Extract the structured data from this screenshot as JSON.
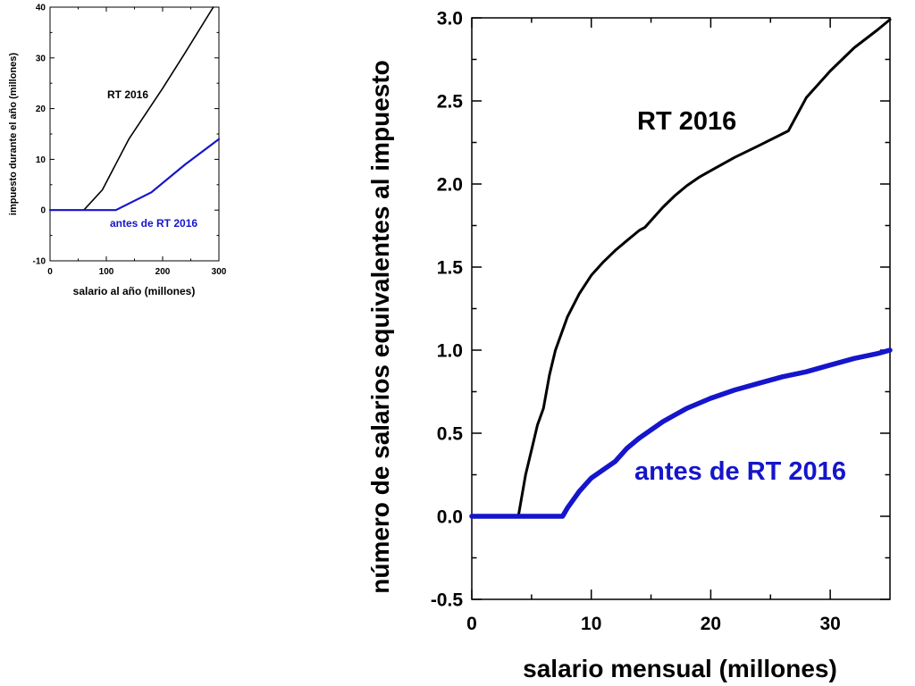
{
  "chart_data": [
    {
      "type": "line",
      "xlabel": "salario al año (millones)",
      "ylabel": "impuesto durante el año (millones)",
      "xlim": [
        0,
        300
      ],
      "ylim": [
        -10,
        40
      ],
      "x_ticks": [
        0,
        100,
        200,
        300
      ],
      "y_ticks": [
        -10,
        0,
        10,
        20,
        30,
        40
      ],
      "grid": false,
      "series": [
        {
          "name": "RT 2016",
          "color": "#000000",
          "x": [
            0,
            60,
            93,
            140,
            200,
            240,
            290
          ],
          "y": [
            0,
            0,
            4,
            14,
            24,
            31,
            40
          ]
        },
        {
          "name": "antes de RT 2016",
          "color": "#1515cc",
          "x": [
            0,
            117,
            180,
            240,
            300
          ],
          "y": [
            0,
            0,
            3.5,
            9,
            14
          ]
        }
      ]
    },
    {
      "type": "line",
      "xlabel": "salario mensual (millones)",
      "ylabel": "número de salarios equivalentes al impuesto",
      "xlim": [
        0,
        35
      ],
      "ylim": [
        -0.5,
        3.0
      ],
      "x_ticks": [
        0,
        10,
        20,
        30
      ],
      "y_ticks": [
        -0.5,
        0.0,
        0.5,
        1.0,
        1.5,
        2.0,
        2.5,
        3.0
      ],
      "y_tick_labels": [
        "-0.5",
        "0.0",
        "0.5",
        "1.0",
        "1.5",
        "2.0",
        "2.5",
        "3.0"
      ],
      "grid": false,
      "series": [
        {
          "name": "RT 2016",
          "color": "#000000",
          "x": [
            0,
            3.9,
            4.5,
            5.0,
            5.5,
            6.0,
            6.5,
            7.0,
            8.0,
            9.0,
            10.0,
            11.0,
            12.0,
            13.0,
            14.0,
            14.5,
            15.0,
            16.0,
            17.0,
            18.0,
            19.0,
            20.0,
            22.0,
            24.0,
            26.5,
            28.0,
            30.0,
            32.0,
            34.0,
            35.0
          ],
          "y": [
            0,
            0,
            0.25,
            0.4,
            0.55,
            0.65,
            0.85,
            1.0,
            1.2,
            1.34,
            1.45,
            1.53,
            1.6,
            1.66,
            1.72,
            1.74,
            1.78,
            1.86,
            1.93,
            1.99,
            2.04,
            2.08,
            2.16,
            2.23,
            2.32,
            2.52,
            2.68,
            2.82,
            2.93,
            2.99
          ]
        },
        {
          "name": "antes de RT 2016",
          "color": "#1515cc",
          "x": [
            0,
            7.6,
            8.0,
            9.0,
            10.0,
            11.0,
            12.0,
            13.0,
            14.0,
            16.0,
            18.0,
            20.0,
            22.0,
            24.0,
            26.0,
            28.0,
            30.0,
            32.0,
            34.0,
            35.0
          ],
          "y": [
            0,
            0,
            0.05,
            0.15,
            0.23,
            0.28,
            0.33,
            0.41,
            0.47,
            0.57,
            0.65,
            0.71,
            0.76,
            0.8,
            0.84,
            0.87,
            0.91,
            0.95,
            0.98,
            1.0
          ]
        }
      ]
    }
  ]
}
